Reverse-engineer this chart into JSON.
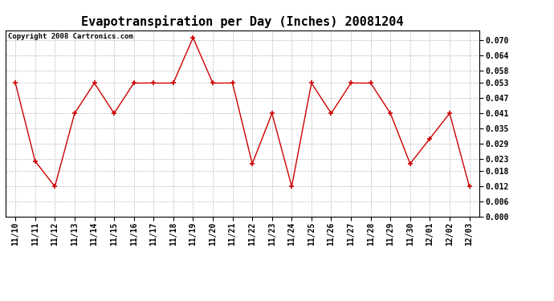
{
  "title": "Evapotranspiration per Day (Inches) 20081204",
  "copyright_text": "Copyright 2008 Cartronics.com",
  "x_labels": [
    "11/10",
    "11/11",
    "11/12",
    "11/13",
    "11/14",
    "11/15",
    "11/16",
    "11/17",
    "11/18",
    "11/19",
    "11/20",
    "11/21",
    "11/22",
    "11/23",
    "11/24",
    "11/25",
    "11/26",
    "11/27",
    "11/28",
    "11/29",
    "11/30",
    "12/01",
    "12/02",
    "12/03"
  ],
  "y_values": [
    0.053,
    0.022,
    0.012,
    0.041,
    0.053,
    0.041,
    0.053,
    0.053,
    0.053,
    0.071,
    0.053,
    0.053,
    0.021,
    0.041,
    0.012,
    0.053,
    0.041,
    0.053,
    0.053,
    0.041,
    0.021,
    0.031,
    0.041,
    0.012
  ],
  "line_color": "#cc0000",
  "marker": "+",
  "marker_size": 5,
  "ylim": [
    0.0,
    0.074
  ],
  "yticks": [
    0.0,
    0.006,
    0.012,
    0.018,
    0.023,
    0.029,
    0.035,
    0.041,
    0.047,
    0.053,
    0.058,
    0.064,
    0.07
  ],
  "grid_color": "#bbbbbb",
  "bg_color": "#ffffff",
  "title_fontsize": 11,
  "tick_fontsize": 7,
  "copyright_fontsize": 6.5
}
